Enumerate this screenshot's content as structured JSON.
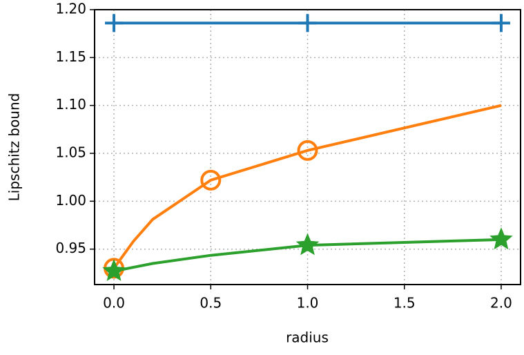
{
  "chart_data": {
    "type": "line",
    "x_label": "radius",
    "y_label": "Lipschitz bound",
    "xlim": [
      -0.1,
      2.1
    ],
    "ylim": [
      0.913,
      1.2
    ],
    "xticks": [
      {
        "value": 0,
        "label": "0.0"
      },
      {
        "value": 0.5,
        "label": "0.5"
      },
      {
        "value": 1,
        "label": "1.0"
      },
      {
        "value": 1.5,
        "label": "1.5"
      },
      {
        "value": 2,
        "label": "2.0"
      }
    ],
    "yticks": [
      0.95,
      {
        "value": 1.0,
        "label": "1.00"
      },
      1.05,
      {
        "value": 1.1,
        "label": "1.10"
      },
      1.15,
      {
        "value": 1.2,
        "label": "1.20"
      }
    ],
    "grid": true,
    "series": [
      {
        "color": "#1f77b4",
        "marker": "plus",
        "x": [
          0,
          1,
          2
        ],
        "values": [
          1.186,
          1.186,
          1.186
        ],
        "markevery": [
          0,
          1,
          2
        ]
      },
      {
        "color": "#ff7f0e",
        "marker": "circle",
        "x": [
          0,
          0.1,
          0.2,
          0.5,
          1,
          2
        ],
        "values": [
          0.93,
          0.958,
          0.981,
          1.022,
          1.053,
          1.1
        ],
        "markevery": [
          0,
          3,
          4
        ]
      },
      {
        "color": "#2ca02c",
        "marker": "star",
        "x": [
          0,
          0.2,
          0.5,
          1,
          2
        ],
        "values": [
          0.927,
          0.935,
          0.9435,
          0.954,
          0.96
        ],
        "markevery": [
          0,
          3,
          4
        ]
      }
    ]
  }
}
